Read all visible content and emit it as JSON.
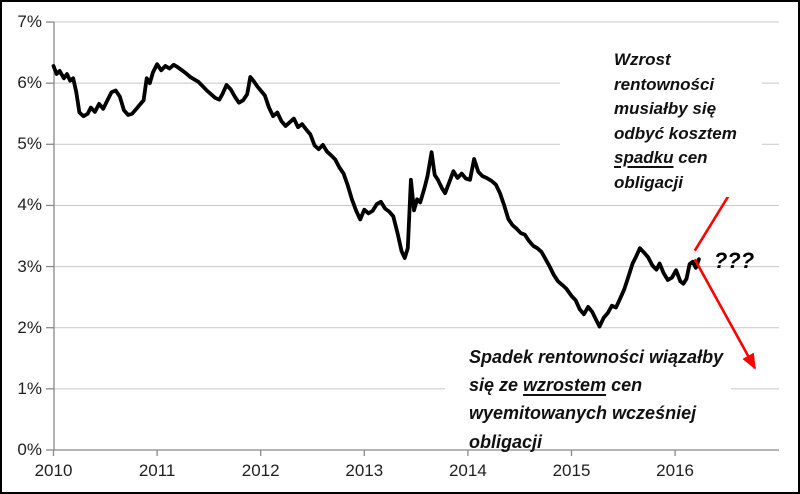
{
  "chart_data": {
    "type": "line",
    "title": "",
    "xlabel": "",
    "ylabel": "",
    "x_range": [
      2010,
      2017
    ],
    "y_range_percent": [
      0,
      7
    ],
    "grid": "horizontal",
    "grid_color": "#C8C8C8",
    "axis_color": "#898989",
    "y_tick_labels": [
      {
        "value": 7,
        "label": "7%"
      },
      {
        "value": 6,
        "label": "6%"
      },
      {
        "value": 5,
        "label": "5%"
      },
      {
        "value": 4,
        "label": "4%"
      },
      {
        "value": 3,
        "label": "3%"
      },
      {
        "value": 2,
        "label": "2%"
      },
      {
        "value": 1,
        "label": "1%"
      },
      {
        "value": 0,
        "label": "0%"
      }
    ],
    "x_tick_labels": [
      {
        "value": 2010,
        "label": "2010"
      },
      {
        "value": 2011,
        "label": "2011"
      },
      {
        "value": 2012,
        "label": "2012"
      },
      {
        "value": 2013,
        "label": "2013"
      },
      {
        "value": 2014,
        "label": "2014"
      },
      {
        "value": 2015,
        "label": "2015"
      },
      {
        "value": 2016,
        "label": "2016"
      }
    ],
    "series": [
      {
        "name": "",
        "color": "#000000",
        "data": [
          [
            2010.0,
            6.28
          ],
          [
            2010.03,
            6.15
          ],
          [
            2010.06,
            6.2
          ],
          [
            2010.1,
            6.08
          ],
          [
            2010.13,
            6.15
          ],
          [
            2010.16,
            6.04
          ],
          [
            2010.19,
            6.08
          ],
          [
            2010.22,
            5.85
          ],
          [
            2010.25,
            5.52
          ],
          [
            2010.29,
            5.46
          ],
          [
            2010.33,
            5.5
          ],
          [
            2010.36,
            5.6
          ],
          [
            2010.4,
            5.53
          ],
          [
            2010.44,
            5.66
          ],
          [
            2010.48,
            5.58
          ],
          [
            2010.52,
            5.72
          ],
          [
            2010.56,
            5.85
          ],
          [
            2010.6,
            5.88
          ],
          [
            2010.64,
            5.78
          ],
          [
            2010.68,
            5.56
          ],
          [
            2010.72,
            5.48
          ],
          [
            2010.76,
            5.5
          ],
          [
            2010.8,
            5.58
          ],
          [
            2010.84,
            5.66
          ],
          [
            2010.87,
            5.72
          ],
          [
            2010.9,
            6.08
          ],
          [
            2010.93,
            6.0
          ],
          [
            2010.96,
            6.18
          ],
          [
            2011.0,
            6.31
          ],
          [
            2011.04,
            6.21
          ],
          [
            2011.08,
            6.28
          ],
          [
            2011.12,
            6.24
          ],
          [
            2011.16,
            6.3
          ],
          [
            2011.2,
            6.26
          ],
          [
            2011.24,
            6.21
          ],
          [
            2011.28,
            6.16
          ],
          [
            2011.32,
            6.1
          ],
          [
            2011.36,
            6.06
          ],
          [
            2011.4,
            6.02
          ],
          [
            2011.44,
            5.95
          ],
          [
            2011.48,
            5.88
          ],
          [
            2011.52,
            5.82
          ],
          [
            2011.56,
            5.76
          ],
          [
            2011.6,
            5.73
          ],
          [
            2011.63,
            5.82
          ],
          [
            2011.67,
            5.97
          ],
          [
            2011.71,
            5.9
          ],
          [
            2011.75,
            5.78
          ],
          [
            2011.79,
            5.68
          ],
          [
            2011.83,
            5.72
          ],
          [
            2011.87,
            5.82
          ],
          [
            2011.9,
            6.1
          ],
          [
            2011.93,
            6.04
          ],
          [
            2011.97,
            5.94
          ],
          [
            2012.0,
            5.88
          ],
          [
            2012.04,
            5.8
          ],
          [
            2012.08,
            5.6
          ],
          [
            2012.12,
            5.46
          ],
          [
            2012.16,
            5.52
          ],
          [
            2012.2,
            5.38
          ],
          [
            2012.24,
            5.3
          ],
          [
            2012.28,
            5.36
          ],
          [
            2012.32,
            5.42
          ],
          [
            2012.36,
            5.28
          ],
          [
            2012.4,
            5.33
          ],
          [
            2012.44,
            5.24
          ],
          [
            2012.48,
            5.16
          ],
          [
            2012.52,
            4.98
          ],
          [
            2012.56,
            4.92
          ],
          [
            2012.6,
            4.99
          ],
          [
            2012.64,
            4.88
          ],
          [
            2012.68,
            4.82
          ],
          [
            2012.72,
            4.75
          ],
          [
            2012.76,
            4.62
          ],
          [
            2012.8,
            4.52
          ],
          [
            2012.84,
            4.33
          ],
          [
            2012.88,
            4.1
          ],
          [
            2012.92,
            3.92
          ],
          [
            2012.96,
            3.77
          ],
          [
            2013.0,
            3.93
          ],
          [
            2013.04,
            3.87
          ],
          [
            2013.08,
            3.91
          ],
          [
            2013.12,
            4.02
          ],
          [
            2013.16,
            4.06
          ],
          [
            2013.2,
            3.95
          ],
          [
            2013.24,
            3.9
          ],
          [
            2013.28,
            3.82
          ],
          [
            2013.32,
            3.55
          ],
          [
            2013.36,
            3.25
          ],
          [
            2013.39,
            3.14
          ],
          [
            2013.42,
            3.3
          ],
          [
            2013.45,
            4.42
          ],
          [
            2013.48,
            3.92
          ],
          [
            2013.51,
            4.1
          ],
          [
            2013.54,
            4.05
          ],
          [
            2013.58,
            4.28
          ],
          [
            2013.61,
            4.48
          ],
          [
            2013.65,
            4.87
          ],
          [
            2013.68,
            4.5
          ],
          [
            2013.71,
            4.42
          ],
          [
            2013.75,
            4.28
          ],
          [
            2013.78,
            4.2
          ],
          [
            2013.82,
            4.38
          ],
          [
            2013.86,
            4.56
          ],
          [
            2013.9,
            4.45
          ],
          [
            2013.94,
            4.52
          ],
          [
            2013.98,
            4.44
          ],
          [
            2014.02,
            4.42
          ],
          [
            2014.06,
            4.76
          ],
          [
            2014.1,
            4.55
          ],
          [
            2014.14,
            4.48
          ],
          [
            2014.18,
            4.45
          ],
          [
            2014.23,
            4.4
          ],
          [
            2014.27,
            4.34
          ],
          [
            2014.31,
            4.2
          ],
          [
            2014.35,
            4.0
          ],
          [
            2014.39,
            3.78
          ],
          [
            2014.43,
            3.68
          ],
          [
            2014.47,
            3.62
          ],
          [
            2014.51,
            3.55
          ],
          [
            2014.55,
            3.52
          ],
          [
            2014.59,
            3.42
          ],
          [
            2014.63,
            3.34
          ],
          [
            2014.67,
            3.3
          ],
          [
            2014.71,
            3.24
          ],
          [
            2014.75,
            3.12
          ],
          [
            2014.79,
            3.0
          ],
          [
            2014.83,
            2.86
          ],
          [
            2014.87,
            2.76
          ],
          [
            2014.91,
            2.7
          ],
          [
            2014.95,
            2.64
          ],
          [
            2015.0,
            2.52
          ],
          [
            2015.04,
            2.45
          ],
          [
            2015.08,
            2.3
          ],
          [
            2015.12,
            2.22
          ],
          [
            2015.16,
            2.34
          ],
          [
            2015.2,
            2.26
          ],
          [
            2015.24,
            2.12
          ],
          [
            2015.27,
            2.02
          ],
          [
            2015.31,
            2.16
          ],
          [
            2015.35,
            2.24
          ],
          [
            2015.39,
            2.36
          ],
          [
            2015.43,
            2.33
          ],
          [
            2015.47,
            2.48
          ],
          [
            2015.51,
            2.63
          ],
          [
            2015.55,
            2.84
          ],
          [
            2015.59,
            3.05
          ],
          [
            2015.62,
            3.15
          ],
          [
            2015.66,
            3.3
          ],
          [
            2015.7,
            3.23
          ],
          [
            2015.74,
            3.15
          ],
          [
            2015.78,
            3.02
          ],
          [
            2015.82,
            2.95
          ],
          [
            2015.85,
            3.05
          ],
          [
            2015.89,
            2.89
          ],
          [
            2015.93,
            2.78
          ],
          [
            2015.97,
            2.82
          ],
          [
            2016.01,
            2.94
          ],
          [
            2016.05,
            2.76
          ],
          [
            2016.08,
            2.72
          ],
          [
            2016.11,
            2.8
          ],
          [
            2016.14,
            3.04
          ],
          [
            2016.17,
            3.08
          ],
          [
            2016.2,
            2.98
          ],
          [
            2016.23,
            3.12
          ]
        ]
      }
    ],
    "arrows": [
      {
        "direction": "up",
        "color": "#FF0000",
        "from": [
          2016.19,
          3.26
        ],
        "to": [
          2016.76,
          4.83
        ]
      },
      {
        "direction": "down",
        "color": "#FF0000",
        "from": [
          2016.19,
          3.12
        ],
        "to": [
          2016.77,
          1.34
        ]
      }
    ]
  },
  "annotations": {
    "top": {
      "line1": "Wzrost",
      "line2": "rentowności",
      "line3": "musiałby się",
      "line4": "odbyć kosztem",
      "line5_underline": "spadku",
      "line5_rest": " cen",
      "line6": "obligacji"
    },
    "bottom": {
      "line1": "Spadek rentowności wiązałby",
      "line2_pre": "się ze ",
      "line2_underline": "wzrostem",
      "line2_rest": " cen",
      "line3": "wyemitowanych wcześniej",
      "line4": "obligacji"
    },
    "question_marks": "???",
    "accent_color": "#FF0000"
  }
}
